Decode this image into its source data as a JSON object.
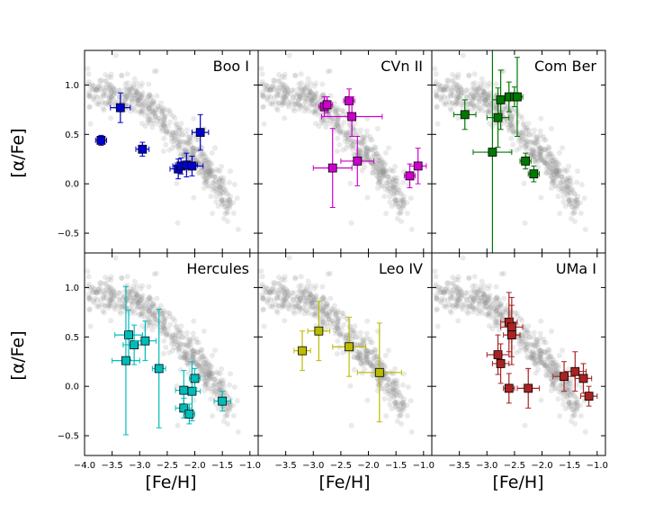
{
  "chart_data": {
    "type": "scatter",
    "layout": "2x3 grid of panels sharing x and y axes",
    "xlabel": "[Fe/H]",
    "ylabel": "[α/Fe]",
    "xlim": [
      -4.0,
      -0.85
    ],
    "ylim": [
      -0.7,
      1.35
    ],
    "xticks": [
      -4.0,
      -3.5,
      -3.0,
      -2.5,
      -2.0,
      -1.5,
      -1.0
    ],
    "xtick_labels": [
      "−4.0",
      "−3.5",
      "−3.0",
      "−2.5",
      "−2.0",
      "−1.5",
      "−1.0"
    ],
    "xtick_labels_inner": [
      "−3.5",
      "−3.0",
      "−2.5",
      "−2.0",
      "−1.5",
      "−1.0"
    ],
    "yticks": [
      -0.5,
      0.0,
      0.5,
      1.0
    ],
    "ytick_labels": [
      "−0.5",
      "0.0",
      "0.5",
      "1.0"
    ],
    "background_series": {
      "name": "Milky Way halo stars",
      "color": "#888888",
      "description": "dense grey cloud of reference stars",
      "trend_points": [
        {
          "x": -3.9,
          "y": 0.92
        },
        {
          "x": -3.5,
          "y": 0.9
        },
        {
          "x": -3.0,
          "y": 0.85
        },
        {
          "x": -2.7,
          "y": 0.7
        },
        {
          "x": -2.5,
          "y": 0.6
        },
        {
          "x": -2.3,
          "y": 0.45
        },
        {
          "x": -2.0,
          "y": 0.3
        },
        {
          "x": -1.8,
          "y": 0.15
        },
        {
          "x": -1.6,
          "y": 0.0
        },
        {
          "x": -1.5,
          "y": -0.1
        },
        {
          "x": -1.4,
          "y": -0.18
        }
      ]
    },
    "panels": [
      {
        "name": "Boo I",
        "color": "#0000cc",
        "points": [
          {
            "x": -3.7,
            "y": 0.44,
            "xerr": 0.1,
            "yerr": 0.05
          },
          {
            "x": -3.35,
            "y": 0.77,
            "xerr": 0.18,
            "yerr": 0.15
          },
          {
            "x": -2.95,
            "y": 0.35,
            "xerr": 0.12,
            "yerr": 0.07
          },
          {
            "x": -2.3,
            "y": 0.15,
            "xerr": 0.15,
            "yerr": 0.1
          },
          {
            "x": -2.25,
            "y": 0.18,
            "xerr": 0.15,
            "yerr": 0.08
          },
          {
            "x": -2.15,
            "y": 0.19,
            "xerr": 0.2,
            "yerr": 0.12
          },
          {
            "x": -2.05,
            "y": 0.18,
            "xerr": 0.2,
            "yerr": 0.1
          },
          {
            "x": -1.9,
            "y": 0.52,
            "xerr": 0.15,
            "yerr": 0.18
          }
        ]
      },
      {
        "name": "CVn II",
        "color": "#cc00cc",
        "points": [
          {
            "x": -2.8,
            "y": 0.78,
            "xerr": 0.1,
            "yerr": 0.1
          },
          {
            "x": -2.75,
            "y": 0.8,
            "xerr": 0.1,
            "yerr": 0.08
          },
          {
            "x": -2.35,
            "y": 0.84,
            "xerr": 0.1,
            "yerr": 0.12
          },
          {
            "x": -2.3,
            "y": 0.68,
            "xerr": 0.55,
            "yerr": 0.2
          },
          {
            "x": -2.2,
            "y": 0.23,
            "xerr": 0.3,
            "yerr": 0.25
          },
          {
            "x": -2.65,
            "y": 0.16,
            "xerr": 0.35,
            "yerr": 0.4
          },
          {
            "x": -1.25,
            "y": 0.08,
            "xerr": 0.1,
            "yerr": 0.12
          },
          {
            "x": -1.1,
            "y": 0.18,
            "xerr": 0.15,
            "yerr": 0.18
          }
        ]
      },
      {
        "name": "Com Ber",
        "color": "#007700",
        "points": [
          {
            "x": -3.4,
            "y": 0.7,
            "xerr": 0.2,
            "yerr": 0.15
          },
          {
            "x": -2.9,
            "y": 0.32,
            "xerr": 0.35,
            "yerr": 1.05
          },
          {
            "x": -2.8,
            "y": 0.67,
            "xerr": 0.2,
            "yerr": 0.3
          },
          {
            "x": -2.75,
            "y": 0.85,
            "xerr": 0.15,
            "yerr": 0.3
          },
          {
            "x": -2.6,
            "y": 0.88,
            "xerr": 0.2,
            "yerr": 0.15
          },
          {
            "x": -2.5,
            "y": 0.88,
            "xerr": 0.1,
            "yerr": 0.1
          },
          {
            "x": -2.45,
            "y": 0.88,
            "xerr": 0.1,
            "yerr": 0.4
          },
          {
            "x": -2.3,
            "y": 0.23,
            "xerr": 0.1,
            "yerr": 0.08
          },
          {
            "x": -2.15,
            "y": 0.1,
            "xerr": 0.1,
            "yerr": 0.08
          }
        ]
      },
      {
        "name": "Hercules",
        "color": "#00bbbb",
        "points": [
          {
            "x": -3.2,
            "y": 0.52,
            "xerr": 0.25,
            "yerr": 0.25
          },
          {
            "x": -3.1,
            "y": 0.42,
            "xerr": 0.2,
            "yerr": 0.2
          },
          {
            "x": -2.9,
            "y": 0.46,
            "xerr": 0.2,
            "yerr": 0.2
          },
          {
            "x": -3.25,
            "y": 0.26,
            "xerr": 0.25,
            "yerr": 0.75
          },
          {
            "x": -2.65,
            "y": 0.18,
            "xerr": 0.12,
            "yerr": 0.6
          },
          {
            "x": -2.2,
            "y": -0.04,
            "xerr": 0.15,
            "yerr": 0.2
          },
          {
            "x": -2.05,
            "y": -0.05,
            "xerr": 0.15,
            "yerr": 0.3
          },
          {
            "x": -2.0,
            "y": 0.08,
            "xerr": 0.1,
            "yerr": 0.1
          },
          {
            "x": -2.2,
            "y": -0.22,
            "xerr": 0.15,
            "yerr": 0.1
          },
          {
            "x": -2.1,
            "y": -0.28,
            "xerr": 0.1,
            "yerr": 0.1
          },
          {
            "x": -1.5,
            "y": -0.15,
            "xerr": 0.15,
            "yerr": 0.1
          }
        ]
      },
      {
        "name": "Leo IV",
        "color": "#bbbb00",
        "points": [
          {
            "x": -3.2,
            "y": 0.36,
            "xerr": 0.15,
            "yerr": 0.2
          },
          {
            "x": -2.9,
            "y": 0.56,
            "xerr": 0.2,
            "yerr": 0.3
          },
          {
            "x": -2.35,
            "y": 0.4,
            "xerr": 0.3,
            "yerr": 0.3
          },
          {
            "x": -1.8,
            "y": 0.14,
            "xerr": 0.4,
            "yerr": 0.5
          }
        ]
      },
      {
        "name": "UMa I",
        "color": "#aa2222",
        "points": [
          {
            "x": -2.8,
            "y": 0.32,
            "xerr": 0.2,
            "yerr": 0.2
          },
          {
            "x": -2.75,
            "y": 0.23,
            "xerr": 0.15,
            "yerr": 0.2
          },
          {
            "x": -2.6,
            "y": 0.65,
            "xerr": 0.15,
            "yerr": 0.3
          },
          {
            "x": -2.55,
            "y": 0.6,
            "xerr": 0.2,
            "yerr": 0.3
          },
          {
            "x": -2.55,
            "y": 0.52,
            "xerr": 0.15,
            "yerr": 0.3
          },
          {
            "x": -2.6,
            "y": -0.02,
            "xerr": 0.1,
            "yerr": 0.15
          },
          {
            "x": -2.25,
            "y": -0.02,
            "xerr": 0.2,
            "yerr": 0.2
          },
          {
            "x": -1.6,
            "y": 0.1,
            "xerr": 0.2,
            "yerr": 0.15
          },
          {
            "x": -1.4,
            "y": 0.15,
            "xerr": 0.2,
            "yerr": 0.2
          },
          {
            "x": -1.25,
            "y": 0.08,
            "xerr": 0.15,
            "yerr": 0.15
          },
          {
            "x": -1.15,
            "y": -0.1,
            "xerr": 0.15,
            "yerr": 0.1
          }
        ]
      }
    ]
  }
}
